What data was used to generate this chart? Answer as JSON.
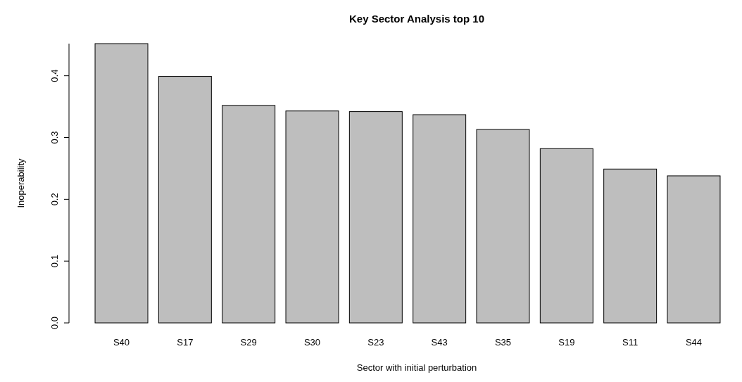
{
  "chart_data": {
    "type": "bar",
    "title": "Key Sector Analysis top 10",
    "xlabel": "Sector with initial perturbation",
    "ylabel": "Inoperability",
    "categories": [
      "S40",
      "S17",
      "S29",
      "S30",
      "S23",
      "S43",
      "S35",
      "S19",
      "S11",
      "S44"
    ],
    "values": [
      0.452,
      0.399,
      0.352,
      0.343,
      0.342,
      0.337,
      0.313,
      0.282,
      0.249,
      0.238
    ],
    "color": "#bebebe",
    "ylim": [
      0,
      0.452
    ],
    "yticks": [
      {
        "value": 0,
        "label": "0.0"
      },
      {
        "value": 0.1,
        "label": "0.1"
      },
      {
        "value": 0.2,
        "label": "0.2"
      },
      {
        "value": 0.3,
        "label": "0.3"
      },
      {
        "value": 0.4,
        "label": "0.4"
      }
    ],
    "grid": false
  }
}
